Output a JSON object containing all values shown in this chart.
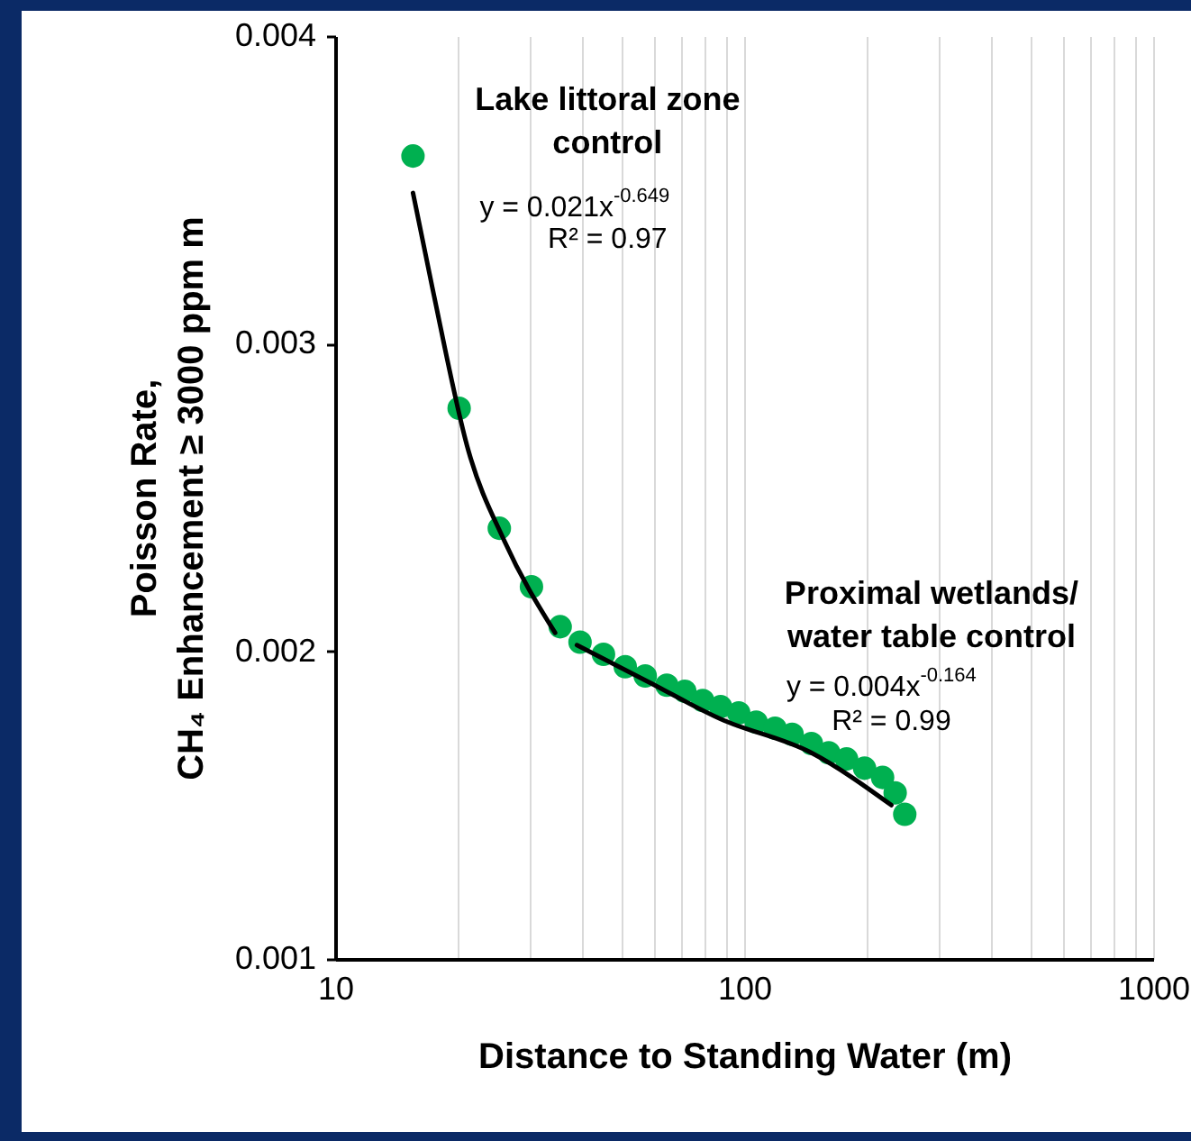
{
  "chart_data": {
    "type": "scatter",
    "xlabel": "Distance to Standing Water (m)",
    "ylabel": "Poisson Rate,\nCH₄ Enhancement ≥ 3000 ppm m",
    "log": "x",
    "grid": "x",
    "xlim": [
      10,
      1000
    ],
    "ylim": [
      0.001,
      0.004
    ],
    "xticks": [
      10,
      {
        "value": 20,
        "label": null
      },
      {
        "value": 30,
        "label": null
      },
      {
        "value": 40,
        "label": null
      },
      {
        "value": 50,
        "label": null
      },
      {
        "value": 60,
        "label": null
      },
      {
        "value": 70,
        "label": null
      },
      {
        "value": 80,
        "label": null
      },
      {
        "value": 90,
        "label": null
      },
      100,
      {
        "value": 200,
        "label": null
      },
      {
        "value": 300,
        "label": null
      },
      {
        "value": 400,
        "label": null
      },
      {
        "value": 500,
        "label": null
      },
      {
        "value": 600,
        "label": null
      },
      {
        "value": 700,
        "label": null
      },
      {
        "value": 800,
        "label": null
      },
      {
        "value": 900,
        "label": null
      },
      1000
    ],
    "yticks": [
      0.001,
      0.002,
      0.003,
      0.004
    ],
    "series": [
      {
        "color": "#00b050",
        "marker": "circle",
        "x": [
          15.5,
          20.1,
          25.2,
          30.2,
          35.5,
          39.7,
          45.3,
          51.2,
          57.3,
          64.7,
          71.6,
          79.2,
          87.6,
          97,
          107,
          119,
          131,
          146,
          161,
          178,
          197,
          218,
          234,
          242,
          247
        ],
        "values": [
          0.00361,
          0.00279,
          0.0024,
          0.00221,
          0.00208,
          0.00203,
          0.00199,
          0.00195,
          0.00192,
          0.00189,
          0.00187,
          0.00184,
          0.00182,
          0.0018,
          0.00177,
          0.00175,
          0.00173,
          0.0017,
          0.00167,
          0.00165,
          0.00162,
          0.00159,
          0.00154,
          null,
          0.00147
        ]
      },
      {
        "type": "line",
        "color": "#000000",
        "line_style": "solid",
        "x": [
          15.5,
          17.3,
          21.2,
          25.9,
          34.5
        ],
        "values": [
          0.00349,
          0.00318,
          0.00265,
          0.00236,
          0.00206
        ]
      },
      {
        "type": "line",
        "color": "#000000",
        "line_style": "solid",
        "x": [
          39,
          58.4,
          87.6,
          146,
          229
        ],
        "values": [
          0.00202,
          0.0019,
          0.00178,
          0.00167,
          0.0015
        ]
      }
    ],
    "annotations": [
      "Lake littoral zone\ncontrol",
      "y = 0.021x$^{-0.649}$",
      "R² = 0.97",
      "Proximal wetlands/\nwater table control",
      "y = 0.004x$^{-0.164}$",
      "R² = 0.99"
    ]
  }
}
